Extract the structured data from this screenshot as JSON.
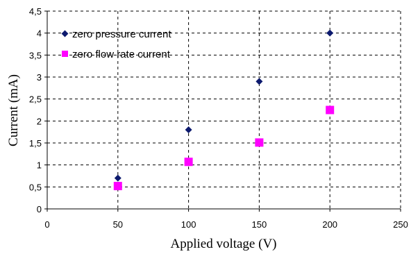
{
  "chart_data": {
    "type": "scatter",
    "title": "",
    "xlabel": "Applied voltage (V)",
    "ylabel": "Current (mA)",
    "xlim": [
      0,
      250
    ],
    "ylim": [
      0,
      4.5
    ],
    "x_ticks": [
      "0",
      "50",
      "100",
      "150",
      "200",
      "250"
    ],
    "y_ticks": [
      "0",
      "0,5",
      "1",
      "1,5",
      "2",
      "2,5",
      "3",
      "3,5",
      "4",
      "4,5"
    ],
    "grid": true,
    "legend_position": "top-left",
    "series": [
      {
        "name": "zero pressure current",
        "marker": "diamond",
        "color": "#0d1a6e",
        "x": [
          50,
          100,
          150,
          200
        ],
        "y": [
          0.7,
          1.8,
          2.9,
          4.0
        ]
      },
      {
        "name": "zero flow rate current",
        "marker": "square",
        "color": "#ff00ff",
        "x": [
          50,
          100,
          150,
          200
        ],
        "y": [
          0.52,
          1.07,
          1.51,
          2.25
        ]
      }
    ]
  }
}
